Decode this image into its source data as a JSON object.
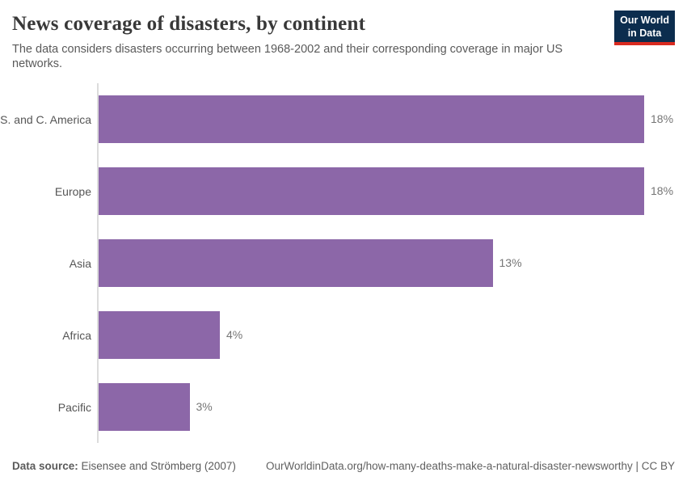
{
  "header": {
    "title": "News coverage of disasters, by continent",
    "subtitle": "The data considers disasters occurring between 1968-2002 and their corresponding coverage in major US networks.",
    "logo": {
      "line1": "Our World",
      "line2": "in Data"
    }
  },
  "chart_data": {
    "type": "bar",
    "orientation": "horizontal",
    "title": "News coverage of disasters, by continent",
    "categories": [
      "S. and C. America",
      "Europe",
      "Asia",
      "Africa",
      "Pacific"
    ],
    "values": [
      18,
      18,
      13,
      4,
      3
    ],
    "value_labels": [
      "18%",
      "18%",
      "13%",
      "4%",
      "3%"
    ],
    "xlabel": "",
    "ylabel": "",
    "xlim": [
      0,
      18
    ],
    "grid": false,
    "legend": false,
    "bar_color": "#8c67a8"
  },
  "footer": {
    "source_label": "Data source:",
    "source_value": "Eisensee and Strömberg (2007)",
    "link": "OurWorldinData.org/how-many-deaths-make-a-natural-disaster-newsworthy | CC BY"
  },
  "colors": {
    "bar": "#8c67a8",
    "logo_navy": "#0c2d4e",
    "logo_red": "#d92a20",
    "axis_line": "#dcdcdc"
  }
}
